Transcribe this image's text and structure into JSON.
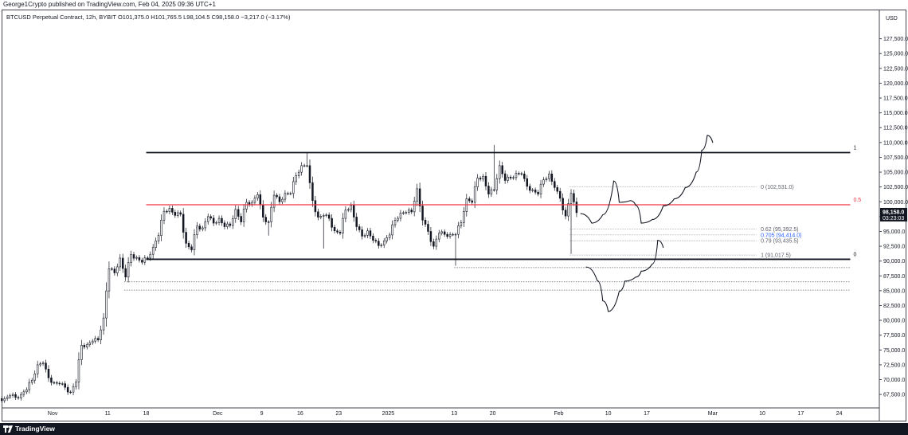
{
  "header": {
    "published": "George1Crypto published on TradingView.com, Feb 04, 2025 09:36 UTC+1"
  },
  "legend": {
    "symbol": "BTCUSD Perpetual Contract, 12h, BYBIT",
    "open": "O101,375.0",
    "high": "H101,765.5",
    "low": "L98,104.5",
    "close": "C98,158.0",
    "change": "−3,217.0 (−3.17%)"
  },
  "footer": {
    "brand": "TradingView",
    "logo": "tradingview-logo-icon"
  },
  "colors": {
    "up": "#131722",
    "down": "#131722",
    "mid_line": "#f23645",
    "fib_highlight": "#2962ff",
    "fib_text": "#5d606b",
    "price_badge_bg": "#131722"
  },
  "chart_data": {
    "type": "candlestick",
    "symbol": "BTCUSD Perpetual Contract",
    "interval": "12h",
    "exchange": "BYBIT",
    "currency_label": "USD",
    "y_ticks": [
      127500,
      125000,
      122500,
      120000,
      117500,
      115000,
      112500,
      110000,
      107500,
      105000,
      102500,
      100000,
      97500,
      95000,
      92500,
      90000,
      87500,
      85000,
      82500,
      80000,
      77500,
      75000,
      72500,
      70000,
      67500
    ],
    "y_tick_labels": [
      "127,500.0",
      "125,000.0",
      "122,500.0",
      "120,000.0",
      "117,500.0",
      "115,000.0",
      "112,500.0",
      "110,000.0",
      "107,500.0",
      "105,000.0",
      "102,500.0",
      "100,000.0",
      "97,500.0",
      "95,000.0",
      "92,500.0",
      "90,000.0",
      "87,500.0",
      "85,000.0",
      "82,500.0",
      "80,000.0",
      "77,500.0",
      "75,000.0",
      "72,500.0",
      "70,000.0",
      "67,500.0"
    ],
    "ylim": [
      65500,
      130000
    ],
    "x_labels": [
      {
        "label": "Nov",
        "date": "2024-11-01"
      },
      {
        "label": "11",
        "date": "2024-11-11"
      },
      {
        "label": "18",
        "date": "2024-11-18"
      },
      {
        "label": "Dec",
        "date": "2024-12-01"
      },
      {
        "label": "9",
        "date": "2024-12-09"
      },
      {
        "label": "16",
        "date": "2024-12-16"
      },
      {
        "label": "23",
        "date": "2024-12-23"
      },
      {
        "label": "2025",
        "date": "2025-01-01"
      },
      {
        "label": "13",
        "date": "2025-01-13"
      },
      {
        "label": "20",
        "date": "2025-01-20"
      },
      {
        "label": "Feb",
        "date": "2025-02-01"
      },
      {
        "label": "10",
        "date": "2025-02-10"
      },
      {
        "label": "17",
        "date": "2025-02-17"
      },
      {
        "label": "Mar",
        "date": "2025-03-01"
      },
      {
        "label": "10",
        "date": "2025-03-10"
      },
      {
        "label": "17",
        "date": "2025-03-17"
      },
      {
        "label": "24",
        "date": "2025-03-24"
      }
    ],
    "xlim": [
      "2024-10-23",
      "2025-03-31"
    ],
    "last_price": {
      "value": 98158,
      "label": "98,158.0",
      "countdown": "03:23:03"
    },
    "closes": [
      {
        "date": "2024-10-23",
        "v": 66800
      },
      {
        "date": "2024-10-24",
        "v": 67300
      },
      {
        "date": "2024-10-25",
        "v": 67000
      },
      {
        "date": "2024-10-26",
        "v": 67500
      },
      {
        "date": "2024-10-27",
        "v": 68300
      },
      {
        "date": "2024-10-28",
        "v": 69900
      },
      {
        "date": "2024-10-29",
        "v": 72500
      },
      {
        "date": "2024-10-30",
        "v": 72800
      },
      {
        "date": "2024-10-31",
        "v": 70300
      },
      {
        "date": "2024-11-01",
        "v": 69500
      },
      {
        "date": "2024-11-02",
        "v": 69300
      },
      {
        "date": "2024-11-03",
        "v": 68700
      },
      {
        "date": "2024-11-04",
        "v": 67900
      },
      {
        "date": "2024-11-05",
        "v": 69600
      },
      {
        "date": "2024-11-06",
        "v": 75800
      },
      {
        "date": "2024-11-07",
        "v": 75900
      },
      {
        "date": "2024-11-08",
        "v": 76500
      },
      {
        "date": "2024-11-09",
        "v": 76700
      },
      {
        "date": "2024-11-10",
        "v": 80400
      },
      {
        "date": "2024-11-11",
        "v": 88700
      },
      {
        "date": "2024-11-12",
        "v": 88000
      },
      {
        "date": "2024-11-13",
        "v": 90500
      },
      {
        "date": "2024-11-14",
        "v": 87300
      },
      {
        "date": "2024-11-15",
        "v": 91100
      },
      {
        "date": "2024-11-16",
        "v": 90600
      },
      {
        "date": "2024-11-17",
        "v": 89800
      },
      {
        "date": "2024-11-18",
        "v": 90500
      },
      {
        "date": "2024-11-19",
        "v": 92300
      },
      {
        "date": "2024-11-20",
        "v": 94300
      },
      {
        "date": "2024-11-21",
        "v": 98400
      },
      {
        "date": "2024-11-22",
        "v": 98900
      },
      {
        "date": "2024-11-23",
        "v": 97700
      },
      {
        "date": "2024-11-24",
        "v": 97900
      },
      {
        "date": "2024-11-25",
        "v": 93000
      },
      {
        "date": "2024-11-26",
        "v": 91900
      },
      {
        "date": "2024-11-27",
        "v": 95900
      },
      {
        "date": "2024-11-28",
        "v": 95600
      },
      {
        "date": "2024-11-29",
        "v": 97500
      },
      {
        "date": "2024-11-30",
        "v": 96400
      },
      {
        "date": "2024-12-01",
        "v": 97200
      },
      {
        "date": "2024-12-02",
        "v": 95800
      },
      {
        "date": "2024-12-03",
        "v": 96000
      },
      {
        "date": "2024-12-04",
        "v": 98700
      },
      {
        "date": "2024-12-05",
        "v": 96600
      },
      {
        "date": "2024-12-06",
        "v": 99900
      },
      {
        "date": "2024-12-07",
        "v": 99900
      },
      {
        "date": "2024-12-08",
        "v": 101200
      },
      {
        "date": "2024-12-09",
        "v": 97400
      },
      {
        "date": "2024-12-10",
        "v": 96600
      },
      {
        "date": "2024-12-11",
        "v": 101100
      },
      {
        "date": "2024-12-12",
        "v": 100000
      },
      {
        "date": "2024-12-13",
        "v": 101400
      },
      {
        "date": "2024-12-14",
        "v": 101400
      },
      {
        "date": "2024-12-15",
        "v": 104400
      },
      {
        "date": "2024-12-16",
        "v": 106100
      },
      {
        "date": "2024-12-17",
        "v": 106100
      },
      {
        "date": "2024-12-18",
        "v": 100200
      },
      {
        "date": "2024-12-19",
        "v": 97400
      },
      {
        "date": "2024-12-20",
        "v": 97700
      },
      {
        "date": "2024-12-21",
        "v": 97200
      },
      {
        "date": "2024-12-22",
        "v": 95100
      },
      {
        "date": "2024-12-23",
        "v": 94700
      },
      {
        "date": "2024-12-24",
        "v": 98600
      },
      {
        "date": "2024-12-25",
        "v": 99400
      },
      {
        "date": "2024-12-26",
        "v": 95800
      },
      {
        "date": "2024-12-27",
        "v": 94200
      },
      {
        "date": "2024-12-28",
        "v": 95100
      },
      {
        "date": "2024-12-29",
        "v": 93500
      },
      {
        "date": "2024-12-30",
        "v": 92600
      },
      {
        "date": "2024-12-31",
        "v": 93400
      },
      {
        "date": "2025-01-01",
        "v": 94400
      },
      {
        "date": "2025-01-02",
        "v": 96900
      },
      {
        "date": "2025-01-03",
        "v": 98100
      },
      {
        "date": "2025-01-04",
        "v": 98200
      },
      {
        "date": "2025-01-05",
        "v": 98300
      },
      {
        "date": "2025-01-06",
        "v": 102200
      },
      {
        "date": "2025-01-07",
        "v": 96900
      },
      {
        "date": "2025-01-08",
        "v": 95000
      },
      {
        "date": "2025-01-09",
        "v": 92500
      },
      {
        "date": "2025-01-10",
        "v": 94700
      },
      {
        "date": "2025-01-11",
        "v": 94500
      },
      {
        "date": "2025-01-12",
        "v": 94500
      },
      {
        "date": "2025-01-13",
        "v": 94500
      },
      {
        "date": "2025-01-14",
        "v": 96500
      },
      {
        "date": "2025-01-15",
        "v": 100500
      },
      {
        "date": "2025-01-16",
        "v": 99900
      },
      {
        "date": "2025-01-17",
        "v": 104000
      },
      {
        "date": "2025-01-18",
        "v": 104300
      },
      {
        "date": "2025-01-19",
        "v": 101300
      },
      {
        "date": "2025-01-20",
        "v": 102000
      },
      {
        "date": "2025-01-21",
        "v": 106100
      },
      {
        "date": "2025-01-22",
        "v": 103600
      },
      {
        "date": "2025-01-23",
        "v": 104000
      },
      {
        "date": "2025-01-24",
        "v": 104800
      },
      {
        "date": "2025-01-25",
        "v": 104700
      },
      {
        "date": "2025-01-26",
        "v": 102600
      },
      {
        "date": "2025-01-27",
        "v": 102000
      },
      {
        "date": "2025-01-28",
        "v": 101300
      },
      {
        "date": "2025-01-29",
        "v": 103700
      },
      {
        "date": "2025-01-30",
        "v": 104700
      },
      {
        "date": "2025-01-31",
        "v": 102400
      },
      {
        "date": "2025-02-01",
        "v": 100600
      },
      {
        "date": "2025-02-02",
        "v": 97600
      },
      {
        "date": "2025-02-03",
        "v": 101400
      },
      {
        "date": "2025-02-04",
        "v": 98158
      }
    ],
    "lows": [
      {
        "date": "2024-11-19",
        "v": 90400
      },
      {
        "date": "2024-12-10",
        "v": 94300
      },
      {
        "date": "2024-12-20",
        "v": 92100
      },
      {
        "date": "2025-01-13",
        "v": 89200
      },
      {
        "date": "2025-02-03",
        "v": 91200
      }
    ],
    "highs": [
      {
        "date": "2024-12-17",
        "v": 108300
      },
      {
        "date": "2025-01-20",
        "v": 109600
      }
    ],
    "levels": [
      {
        "name": "range-top",
        "value": 108300,
        "label": "1",
        "color": "#131722",
        "from": "2024-11-18",
        "to": "2025-03-26"
      },
      {
        "name": "range-mid",
        "value": 99500,
        "label": "0.5",
        "color": "#f23645",
        "from": "2024-11-18",
        "to": "2025-03-26"
      },
      {
        "name": "range-bottom",
        "value": 90300,
        "label": "0",
        "color": "#131722",
        "from": "2024-11-18",
        "to": "2025-03-26"
      }
    ],
    "dotted_levels": [
      {
        "value": 88900,
        "from": "2025-01-13",
        "to": "2025-03-26"
      },
      {
        "value": 86500,
        "from": "2024-11-14",
        "to": "2025-03-26"
      },
      {
        "value": 85100,
        "from": "2024-11-14",
        "to": "2025-03-26"
      }
    ],
    "fib_levels": [
      {
        "ratio": "0",
        "value": 102531,
        "label": "0 (102,531.0)",
        "highlight": false
      },
      {
        "ratio": "0.62",
        "value": 95392.5,
        "label": "0.62 (95,392.5)",
        "highlight": false
      },
      {
        "ratio": "0.705",
        "value": 94414,
        "label": "0.705 (94,414.0)",
        "highlight": true
      },
      {
        "ratio": "0.79",
        "value": 93435.5,
        "label": "0.79 (93,435.5)",
        "highlight": false
      },
      {
        "ratio": "1",
        "value": 91017.5,
        "label": "1 (91,017.5)",
        "highlight": false
      }
    ],
    "fib_range": {
      "from": "2025-02-03",
      "to": "2025-03-09"
    },
    "projection_up": [
      {
        "date": "2025-02-05",
        "v": 98000
      },
      {
        "date": "2025-02-07",
        "v": 96400
      },
      {
        "date": "2025-02-09",
        "v": 97800
      },
      {
        "date": "2025-02-11",
        "v": 103500
      },
      {
        "date": "2025-02-12",
        "v": 99900
      },
      {
        "date": "2025-02-14",
        "v": 100200
      },
      {
        "date": "2025-02-15",
        "v": 99400
      },
      {
        "date": "2025-02-16",
        "v": 96400
      },
      {
        "date": "2025-02-18",
        "v": 97000
      },
      {
        "date": "2025-02-20",
        "v": 99300
      },
      {
        "date": "2025-02-22",
        "v": 100500
      },
      {
        "date": "2025-02-24",
        "v": 102400
      },
      {
        "date": "2025-02-26",
        "v": 105000
      },
      {
        "date": "2025-02-27",
        "v": 108700
      },
      {
        "date": "2025-02-28",
        "v": 111200
      },
      {
        "date": "2025-03-01",
        "v": 110000
      }
    ],
    "projection_down": [
      {
        "date": "2025-02-06",
        "v": 89000
      },
      {
        "date": "2025-02-08",
        "v": 86700
      },
      {
        "date": "2025-02-09",
        "v": 83300
      },
      {
        "date": "2025-02-10",
        "v": 81500
      },
      {
        "date": "2025-02-12",
        "v": 84900
      },
      {
        "date": "2025-02-13",
        "v": 86600
      },
      {
        "date": "2025-02-15",
        "v": 87300
      },
      {
        "date": "2025-02-16",
        "v": 88300
      },
      {
        "date": "2025-02-18",
        "v": 89500
      },
      {
        "date": "2025-02-19",
        "v": 93500
      },
      {
        "date": "2025-02-20",
        "v": 92300
      }
    ]
  }
}
